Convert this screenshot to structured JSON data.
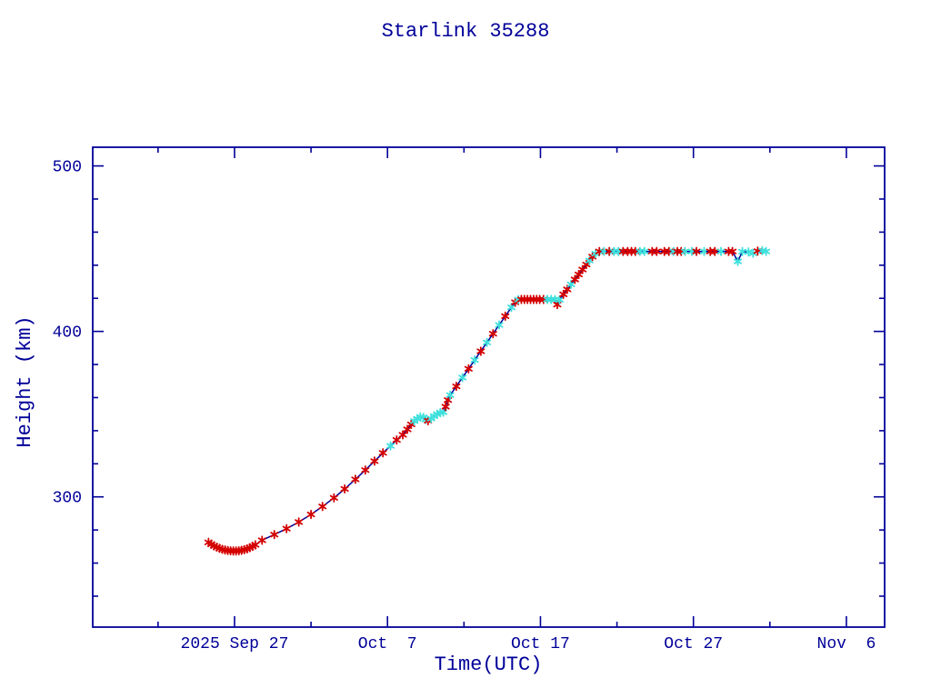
{
  "page_title": "Starlink 35288",
  "chart_data": {
    "type": "line",
    "title": "Starlink 35288",
    "xlabel": "Time(UTC)",
    "ylabel": "Height (km)",
    "grid": false,
    "legend": "none",
    "x_axis": {
      "units": "days relative to 2025 Sep 27 00:00 UTC",
      "range": [
        -9.27,
        42.5
      ],
      "major_ticks": [
        {
          "t": 0,
          "label": "2025 Sep 27"
        },
        {
          "t": 10,
          "label": "Oct  7"
        },
        {
          "t": 20,
          "label": "Oct 17"
        },
        {
          "t": 30,
          "label": "Oct 27"
        },
        {
          "t": 40,
          "label": "Nov  6"
        }
      ],
      "minor_ticks": [
        -5,
        5,
        15,
        25,
        35
      ]
    },
    "y_axis": {
      "units": "km",
      "range": [
        221.3,
        511.3
      ],
      "major_ticks": [
        {
          "v": 300,
          "label": "300"
        },
        {
          "v": 400,
          "label": "400"
        },
        {
          "v": 500,
          "label": "500"
        }
      ],
      "minor_ticks": [
        240,
        260,
        280,
        320,
        340,
        360,
        380,
        420,
        440,
        460,
        480
      ]
    },
    "colors": {
      "frame": "#000099",
      "text": "#000099",
      "line": "#000099",
      "red_marker": "#d40000",
      "cyan_marker": "#3fe0dc",
      "background": "#ffffff"
    },
    "series": [
      {
        "name": "orbit-height",
        "marker": "asterisk",
        "point_format": [
          "days_since_2025-09-27",
          "height_km",
          "marker_color r=red c=cyan"
        ],
        "points": [
          [
            -1.7,
            272.5,
            "r"
          ],
          [
            -1.52,
            271.4,
            "r"
          ],
          [
            -1.34,
            270.4,
            "r"
          ],
          [
            -1.16,
            269.6,
            "r"
          ],
          [
            -0.98,
            268.9,
            "r"
          ],
          [
            -0.8,
            268.3,
            "r"
          ],
          [
            -0.62,
            267.9,
            "r"
          ],
          [
            -0.44,
            267.6,
            "r"
          ],
          [
            -0.26,
            267.4,
            "r"
          ],
          [
            -0.08,
            267.3,
            "r"
          ],
          [
            0.1,
            267.3,
            "r"
          ],
          [
            0.28,
            267.4,
            "r"
          ],
          [
            0.46,
            267.7,
            "r"
          ],
          [
            0.64,
            268.1,
            "r"
          ],
          [
            0.82,
            268.6,
            "r"
          ],
          [
            1.0,
            269.3,
            "r"
          ],
          [
            1.18,
            270.1,
            "r"
          ],
          [
            1.36,
            271.0,
            "r"
          ],
          [
            1.8,
            273.8,
            "r"
          ],
          [
            2.6,
            277.2,
            "r"
          ],
          [
            3.4,
            280.8,
            "r"
          ],
          [
            4.2,
            284.8,
            "r"
          ],
          [
            5.0,
            289.4,
            "r"
          ],
          [
            5.75,
            294.2,
            "r"
          ],
          [
            6.5,
            299.4,
            "r"
          ],
          [
            7.2,
            304.8,
            "r"
          ],
          [
            7.9,
            310.6,
            "r"
          ],
          [
            8.55,
            316.2,
            "r"
          ],
          [
            9.15,
            321.6,
            "r"
          ],
          [
            9.7,
            326.6,
            "r"
          ],
          [
            10.2,
            330.8,
            "c"
          ],
          [
            10.6,
            334.4,
            "r"
          ],
          [
            11.0,
            337.5,
            "r"
          ],
          [
            11.3,
            340.8,
            "r"
          ],
          [
            11.55,
            343.8,
            "r"
          ],
          [
            11.75,
            345.8,
            "c"
          ],
          [
            11.95,
            347.2,
            "c"
          ],
          [
            12.15,
            348.3,
            "c"
          ],
          [
            12.35,
            348.0,
            "c"
          ],
          [
            12.5,
            346.8,
            "c"
          ],
          [
            12.65,
            346.0,
            "r"
          ],
          [
            12.85,
            347.3,
            "c"
          ],
          [
            13.05,
            348.8,
            "c"
          ],
          [
            13.25,
            350.0,
            "c"
          ],
          [
            13.45,
            350.9,
            "c"
          ],
          [
            13.65,
            351.2,
            "c"
          ],
          [
            13.8,
            354.5,
            "r"
          ],
          [
            13.95,
            358.5,
            "r"
          ],
          [
            14.1,
            361.5,
            "c"
          ],
          [
            14.5,
            366.8,
            "r"
          ],
          [
            14.9,
            372.1,
            "c"
          ],
          [
            15.3,
            377.4,
            "r"
          ],
          [
            15.7,
            382.7,
            "c"
          ],
          [
            16.1,
            388.0,
            "r"
          ],
          [
            16.5,
            393.3,
            "c"
          ],
          [
            16.9,
            398.6,
            "r"
          ],
          [
            17.3,
            403.9,
            "c"
          ],
          [
            17.7,
            409.2,
            "r"
          ],
          [
            18.1,
            414.5,
            "c"
          ],
          [
            18.35,
            417.6,
            "r"
          ],
          [
            18.55,
            419.2,
            "c"
          ],
          [
            18.75,
            419.3,
            "r"
          ],
          [
            18.95,
            419.3,
            "r"
          ],
          [
            19.15,
            419.3,
            "r"
          ],
          [
            19.35,
            419.3,
            "r"
          ],
          [
            19.55,
            419.3,
            "r"
          ],
          [
            19.75,
            419.3,
            "r"
          ],
          [
            19.95,
            419.3,
            "r"
          ],
          [
            20.2,
            419.3,
            "r"
          ],
          [
            20.45,
            419.3,
            "c"
          ],
          [
            20.7,
            419.3,
            "c"
          ],
          [
            20.95,
            419.2,
            "c"
          ],
          [
            21.1,
            416.2,
            "r"
          ],
          [
            21.25,
            419.1,
            "c"
          ],
          [
            21.5,
            422.4,
            "r"
          ],
          [
            21.75,
            425.4,
            "r"
          ],
          [
            22.0,
            428.4,
            "c"
          ],
          [
            22.25,
            431.4,
            "r"
          ],
          [
            22.5,
            434.4,
            "r"
          ],
          [
            22.75,
            437.4,
            "r"
          ],
          [
            23.0,
            440.4,
            "r"
          ],
          [
            23.2,
            442.8,
            "c"
          ],
          [
            23.4,
            445.2,
            "r"
          ],
          [
            23.6,
            447.0,
            "c"
          ],
          [
            23.85,
            448.3,
            "r"
          ],
          [
            24.15,
            448.3,
            "c"
          ],
          [
            24.5,
            448.3,
            "r"
          ],
          [
            24.8,
            448.3,
            "c"
          ],
          [
            25.1,
            448.3,
            "c"
          ],
          [
            25.4,
            448.3,
            "r"
          ],
          [
            25.7,
            448.3,
            "r"
          ],
          [
            25.95,
            448.3,
            "r"
          ],
          [
            26.2,
            448.3,
            "r"
          ],
          [
            26.5,
            448.3,
            "c"
          ],
          [
            26.8,
            448.3,
            "c"
          ],
          [
            27.3,
            448.3,
            "r"
          ],
          [
            27.6,
            448.3,
            "r"
          ],
          [
            28.1,
            448.3,
            "r"
          ],
          [
            28.4,
            448.3,
            "r"
          ],
          [
            28.7,
            448.3,
            "c"
          ],
          [
            28.95,
            448.3,
            "r"
          ],
          [
            29.2,
            448.3,
            "r"
          ],
          [
            29.45,
            448.3,
            "c"
          ],
          [
            29.9,
            448.3,
            "c"
          ],
          [
            30.2,
            448.3,
            "r"
          ],
          [
            30.7,
            448.3,
            "c"
          ],
          [
            31.1,
            448.3,
            "r"
          ],
          [
            31.4,
            448.3,
            "r"
          ],
          [
            31.8,
            448.3,
            "c"
          ],
          [
            32.3,
            448.3,
            "r"
          ],
          [
            32.55,
            448.3,
            "r"
          ],
          [
            32.9,
            442.3,
            "c"
          ],
          [
            33.2,
            448.2,
            "c"
          ],
          [
            33.6,
            448.0,
            "c"
          ],
          [
            33.9,
            447.2,
            "c"
          ],
          [
            34.2,
            448.5,
            "r"
          ],
          [
            34.5,
            448.8,
            "c"
          ],
          [
            34.75,
            448.3,
            "c"
          ]
        ]
      }
    ]
  }
}
